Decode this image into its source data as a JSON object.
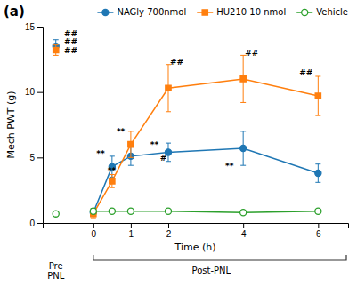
{
  "chart_data": {
    "type": "line",
    "title": "(a)",
    "y_label": "Mech PWT (g)",
    "x_label": "Time (h)",
    "x": [
      -1.0,
      0.0,
      0.5,
      1.0,
      2.0,
      4.0,
      6.0
    ],
    "series": [
      {
        "name": "NAGly 700nmol",
        "values": [
          13.5,
          0.8,
          4.3,
          5.1,
          5.4,
          5.7,
          3.8
        ],
        "errors": [
          0.5,
          0.3,
          0.8,
          0.7,
          0.7,
          1.3,
          0.7
        ],
        "marker": "circle"
      },
      {
        "name": "HU210 10 nmol",
        "values": [
          13.2,
          0.7,
          3.2,
          6.0,
          10.3,
          11.0,
          9.7
        ],
        "errors": [
          0.4,
          0.3,
          0.5,
          1.0,
          1.8,
          1.8,
          1.5
        ],
        "marker": "square"
      },
      {
        "name": "Vehicle",
        "values": [
          0.7,
          0.9,
          0.9,
          0.9,
          0.9,
          0.8,
          0.9
        ],
        "errors": [
          0.15,
          0.2,
          0.15,
          0.15,
          0.15,
          0.15,
          0.15
        ],
        "marker": "open-circle"
      }
    ],
    "xlim": [
      -1.35,
      6.8
    ],
    "xticks": [
      0,
      1,
      2,
      4,
      6
    ],
    "ylim": [
      0,
      15
    ],
    "yticks": [
      0,
      5,
      10,
      15
    ],
    "legend": "top",
    "annotations": [
      {
        "text": "##",
        "x": -0.78,
        "y": 14.2
      },
      {
        "text": "##",
        "x": -0.78,
        "y": 13.55
      },
      {
        "text": "##",
        "x": -0.78,
        "y": 12.9
      },
      {
        "text": "**",
        "x": 0.08,
        "y": 5.0
      },
      {
        "text": "**",
        "x": 0.38,
        "y": 3.7
      },
      {
        "text": "**",
        "x": 0.62,
        "y": 6.7
      },
      {
        "text": "**",
        "x": 1.52,
        "y": 5.7
      },
      {
        "text": "#",
        "x": 1.78,
        "y": 4.7
      },
      {
        "text": "##",
        "x": 2.05,
        "y": 12.0
      },
      {
        "text": "**",
        "x": 3.52,
        "y": 4.1
      },
      {
        "text": "##",
        "x": 4.05,
        "y": 12.7
      },
      {
        "text": "##",
        "x": 5.5,
        "y": 11.2
      },
      {
        "text": "Pre\nPNL",
        "x": -1.0
      },
      {
        "text": "Post-PNL",
        "x": 3.15
      }
    ]
  }
}
